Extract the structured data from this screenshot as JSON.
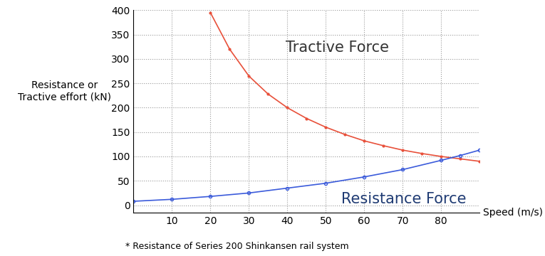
{
  "chart_data": {
    "type": "line",
    "y_label": "Resistance or\nTractive effort (kN)",
    "x_label": "Speed (m/s)",
    "footnote": "* Resistance of Series 200 Shinkansen rail system",
    "series": [
      {
        "name": "Tractive Force",
        "color": "#e8503a",
        "marker": "dot",
        "line_style": "solid",
        "x": [
          20,
          25,
          30,
          35,
          40,
          45,
          50,
          55,
          60,
          65,
          70,
          75,
          80,
          85,
          90
        ],
        "values": [
          395,
          320,
          265,
          228,
          200,
          178,
          160,
          145,
          132,
          122,
          113,
          106,
          100,
          95,
          90
        ]
      },
      {
        "name": "Resistance Force",
        "color": "#3b5bdb",
        "marker": "circle",
        "line_style": "solid",
        "x": [
          0,
          10,
          20,
          30,
          40,
          50,
          60,
          70,
          80,
          85,
          90
        ],
        "values": [
          8,
          12,
          18,
          25,
          35,
          45,
          58,
          73,
          92,
          102,
          113
        ]
      }
    ],
    "xlim": [
      0,
      90
    ],
    "ylim": [
      -15,
      400
    ],
    "xticks": [
      10,
      20,
      30,
      40,
      50,
      60,
      70,
      80
    ],
    "yticks": [
      0,
      50,
      100,
      150,
      200,
      250,
      300,
      350,
      400
    ],
    "grid": true
  }
}
